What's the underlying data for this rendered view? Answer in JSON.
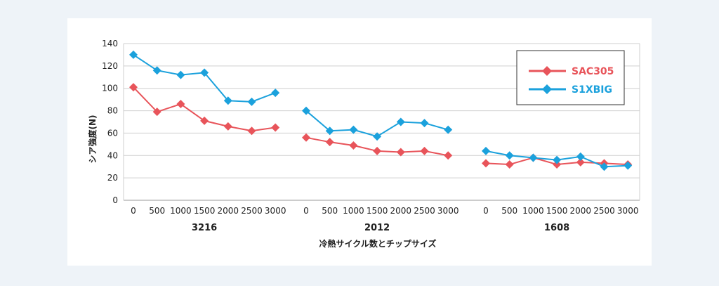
{
  "chart_data": {
    "type": "line",
    "ylabel": "シア強度(N)",
    "xlabel": "冷熱サイクル数とチップサイズ",
    "ylim": [
      0,
      140
    ],
    "yticks": [
      0,
      20,
      40,
      60,
      80,
      100,
      120,
      140
    ],
    "grid": true,
    "legend_position": "top-right",
    "categories": [
      "0",
      "500",
      "1000",
      "1500",
      "2000",
      "2500",
      "3000"
    ],
    "groups": [
      {
        "name": "3216",
        "series": [
          {
            "name": "SAC305",
            "values": [
              101,
              79,
              86,
              71,
              66,
              62,
              65
            ]
          },
          {
            "name": "S1XBIG",
            "values": [
              130,
              116,
              112,
              114,
              89,
              88,
              96
            ]
          }
        ]
      },
      {
        "name": "2012",
        "series": [
          {
            "name": "SAC305",
            "values": [
              56,
              52,
              49,
              44,
              43,
              44,
              40
            ]
          },
          {
            "name": "S1XBIG",
            "values": [
              80,
              62,
              63,
              57,
              70,
              69,
              63
            ]
          }
        ]
      },
      {
        "name": "1608",
        "series": [
          {
            "name": "SAC305",
            "values": [
              33,
              32,
              38,
              32,
              34,
              33,
              32
            ]
          },
          {
            "name": "S1XBIG",
            "values": [
              44,
              40,
              38,
              36,
              39,
              30,
              31
            ]
          }
        ]
      }
    ],
    "series_styles": [
      {
        "name": "SAC305",
        "color": "#e8545a"
      },
      {
        "name": "S1XBIG",
        "color": "#1ba1dc"
      }
    ]
  }
}
